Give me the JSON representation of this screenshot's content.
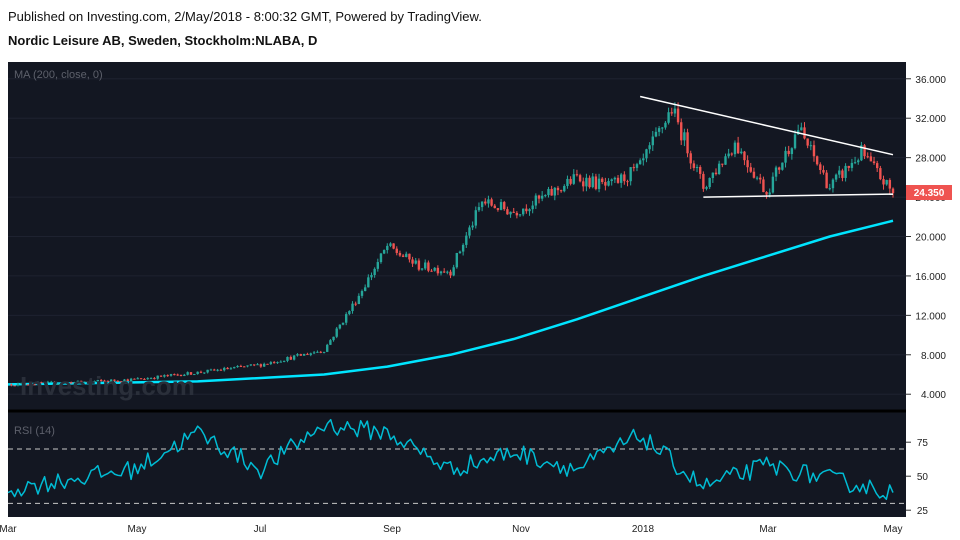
{
  "header": {
    "published": "Published on Investing.com, 2/May/2018 - 8:00:32 GMT, Powered by TradingView.",
    "instrument": "Nordic Leisure AB, Sweden, Stockholm:NLABA, D"
  },
  "watermark": "Investing.com",
  "colors": {
    "background": "#131722",
    "up": "#26a69a",
    "down": "#ef5350",
    "ma": "#00e5ff",
    "rsi": "#00bcd4",
    "trend": "#ffffff",
    "price_tag": "#ef5350"
  },
  "chart_data": [
    {
      "type": "candlestick",
      "indicator_label": "MA (200, close, 0)",
      "x_ticks": [
        "Mar",
        "May",
        "Jul",
        "Sep",
        "Nov",
        "2018",
        "Mar",
        "May"
      ],
      "y_ticks": [
        "36.000",
        "32.000",
        "28.000",
        "24.000",
        "20.000",
        "16.000",
        "12.000",
        "8.000",
        "4.000"
      ],
      "ylim": [
        2.5,
        37.5
      ],
      "last_price_label": "24.350",
      "close_series": [
        {
          "x": "Mar 2017",
          "y": 5.0
        },
        {
          "x": "Apr 2017",
          "y": 5.2
        },
        {
          "x": "May 2017",
          "y": 5.5
        },
        {
          "x": "Jun 2017",
          "y": 6.2
        },
        {
          "x": "Jul 2017",
          "y": 7.0
        },
        {
          "x": "Aug 2017",
          "y": 8.5
        },
        {
          "x": "Aug 2017",
          "y": 13.5
        },
        {
          "x": "Sep 2017",
          "y": 19.0
        },
        {
          "x": "Sep 2017",
          "y": 17.0
        },
        {
          "x": "Oct 2017",
          "y": 16.5
        },
        {
          "x": "Oct 2017",
          "y": 23.5
        },
        {
          "x": "Nov 2017",
          "y": 22.5
        },
        {
          "x": "Nov 2017",
          "y": 24.0
        },
        {
          "x": "Dec 2017",
          "y": 26.0
        },
        {
          "x": "Dec 2017",
          "y": 25.0
        },
        {
          "x": "Jan 2018",
          "y": 27.0
        },
        {
          "x": "Jan 2018",
          "y": 33.0
        },
        {
          "x": "Feb 2018",
          "y": 25.0
        },
        {
          "x": "Feb 2018",
          "y": 29.5
        },
        {
          "x": "Mar 2018",
          "y": 24.5
        },
        {
          "x": "Mar 2018",
          "y": 31.0
        },
        {
          "x": "Apr 2018",
          "y": 25.0
        },
        {
          "x": "Apr 2018",
          "y": 28.5
        },
        {
          "x": "May 2018",
          "y": 24.35
        }
      ],
      "ma_series": [
        {
          "x": "Mar 2017",
          "y": 5.0
        },
        {
          "x": "Jun 2017",
          "y": 5.3
        },
        {
          "x": "Aug 2017",
          "y": 6.0
        },
        {
          "x": "Sep 2017",
          "y": 6.8
        },
        {
          "x": "Oct 2017",
          "y": 8.0
        },
        {
          "x": "Nov 2017",
          "y": 9.6
        },
        {
          "x": "Dec 2017",
          "y": 11.6
        },
        {
          "x": "Jan 2018",
          "y": 13.8
        },
        {
          "x": "Feb 2018",
          "y": 16.0
        },
        {
          "x": "Mar 2018",
          "y": 18.0
        },
        {
          "x": "Apr 2018",
          "y": 20.0
        },
        {
          "x": "May 2018",
          "y": 21.6
        }
      ],
      "trendlines": [
        {
          "from": {
            "x": "Jan 2018",
            "y": 34.2
          },
          "to": {
            "x": "May 2018",
            "y": 28.3
          }
        },
        {
          "from": {
            "x": "Feb 2018",
            "y": 24.0
          },
          "to": {
            "x": "May 2018",
            "y": 24.3
          }
        }
      ]
    },
    {
      "type": "line",
      "indicator_label": "RSI (14)",
      "y_ticks": [
        "75",
        "50",
        "25"
      ],
      "ylim": [
        20,
        95
      ],
      "reference_lines": [
        70,
        30
      ],
      "series": [
        {
          "x": "Mar 2017",
          "y": 40
        },
        {
          "x": "Apr 2017",
          "y": 48
        },
        {
          "x": "May 2017",
          "y": 55
        },
        {
          "x": "Jun 2017",
          "y": 82
        },
        {
          "x": "Jul 2017",
          "y": 55
        },
        {
          "x": "Aug 2017",
          "y": 88
        },
        {
          "x": "Sep 2017",
          "y": 82
        },
        {
          "x": "Oct 2017",
          "y": 55
        },
        {
          "x": "Nov 2017",
          "y": 68
        },
        {
          "x": "Dec 2017",
          "y": 55
        },
        {
          "x": "Jan 2018",
          "y": 80
        },
        {
          "x": "Feb 2018",
          "y": 42
        },
        {
          "x": "Mar 2018",
          "y": 58
        },
        {
          "x": "Apr 2018",
          "y": 48
        },
        {
          "x": "May 2018",
          "y": 38
        }
      ]
    }
  ]
}
